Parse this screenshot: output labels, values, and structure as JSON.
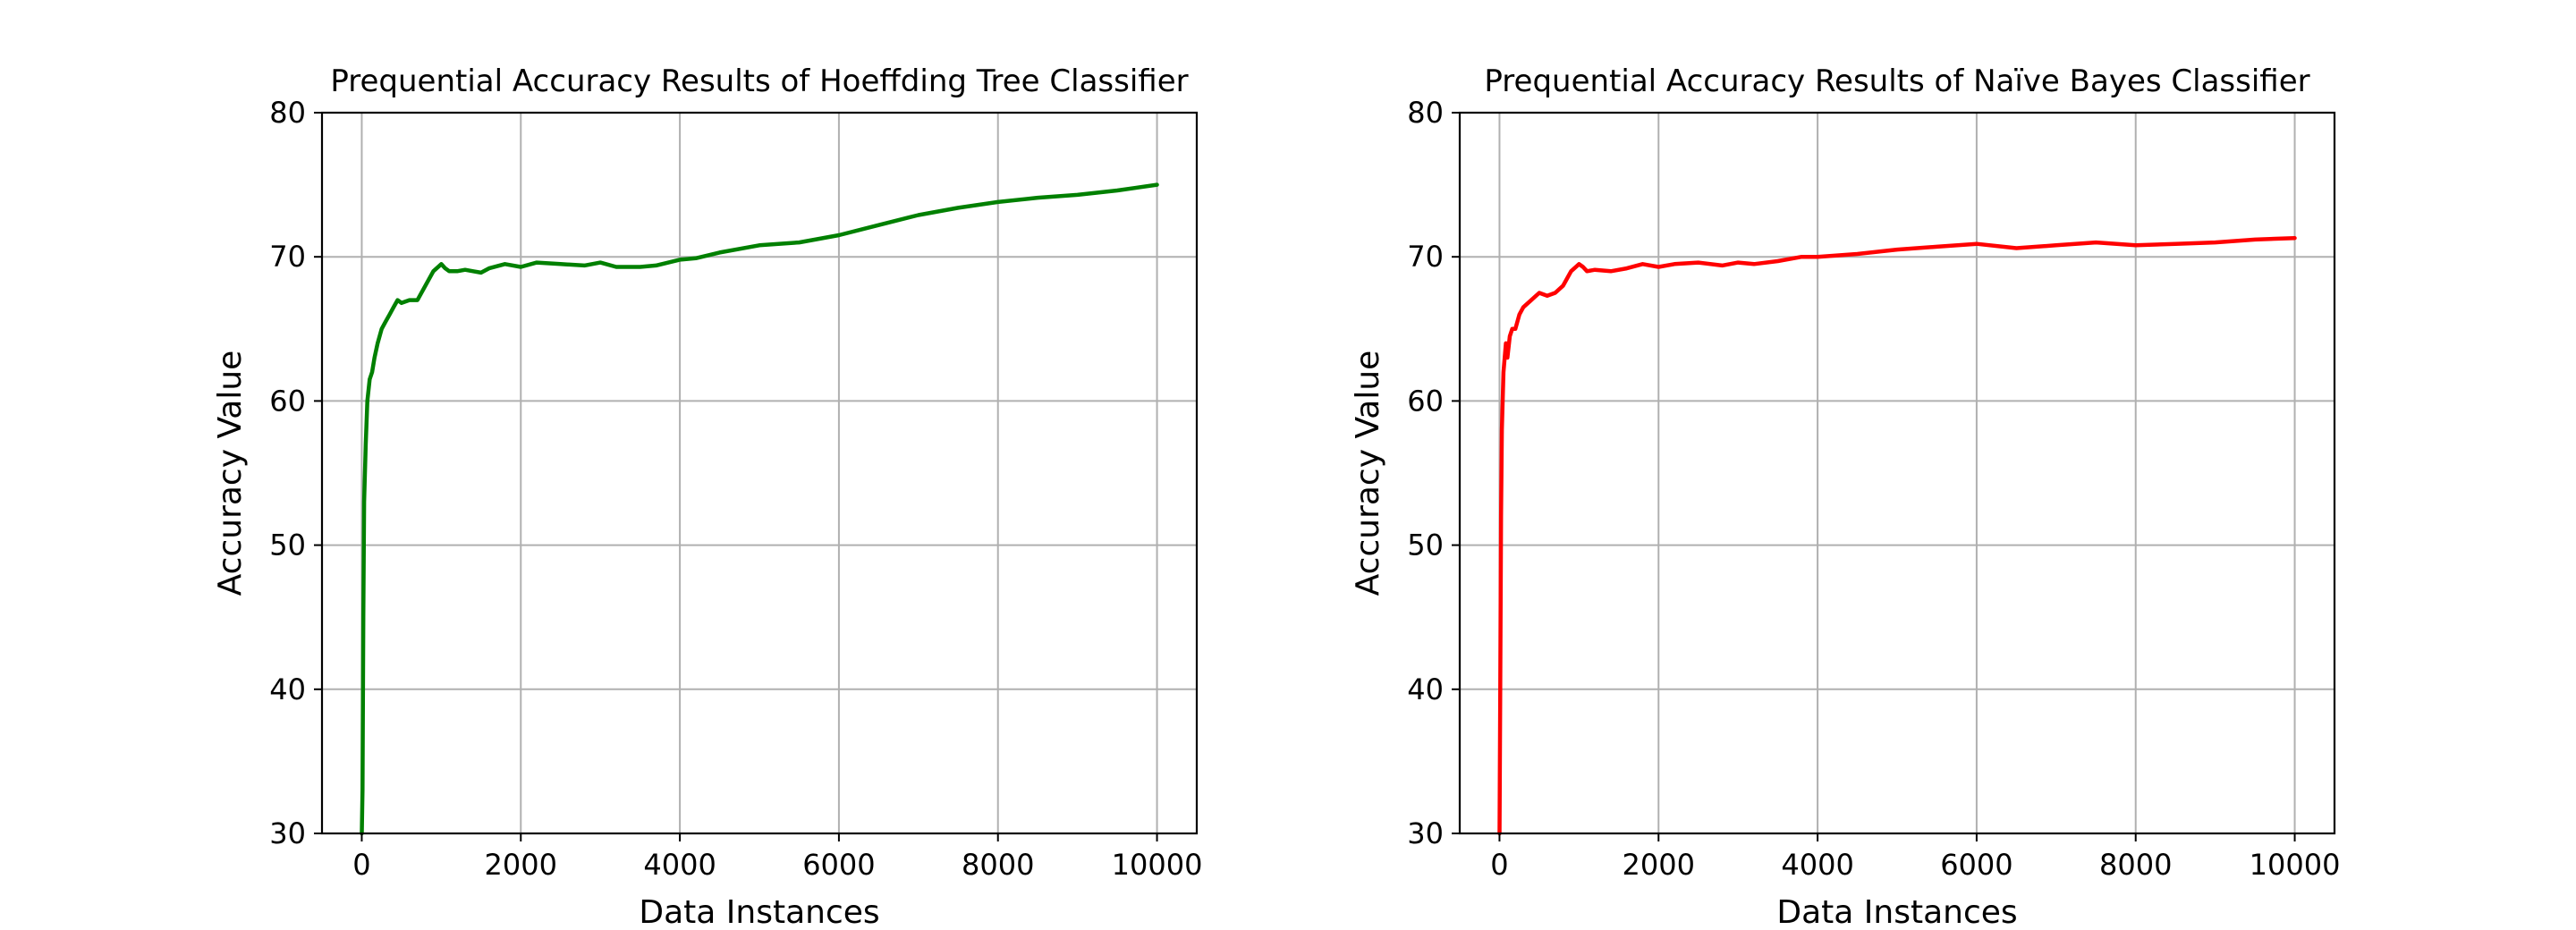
{
  "colors": {
    "background": "#ffffff",
    "grid": "#b0b0b0",
    "axis": "#000000"
  },
  "chart_data": [
    {
      "type": "line",
      "title": "Prequential Accuracy Results of Hoeffding Tree Classifier",
      "xlabel": "Data Instances",
      "ylabel": "Accuracy Value",
      "xlim": [
        -500,
        10500
      ],
      "ylim": [
        30,
        80
      ],
      "xticks": [
        0,
        2000,
        4000,
        6000,
        8000,
        10000
      ],
      "yticks": [
        30,
        40,
        50,
        60,
        70,
        80
      ],
      "grid": true,
      "series": [
        {
          "color": "#008000",
          "x": [
            0,
            10,
            20,
            30,
            50,
            70,
            100,
            130,
            160,
            200,
            250,
            300,
            350,
            400,
            450,
            500,
            600,
            700,
            800,
            900,
            1000,
            1050,
            1100,
            1200,
            1300,
            1400,
            1500,
            1600,
            1800,
            2000,
            2200,
            2500,
            2800,
            3000,
            3200,
            3500,
            3700,
            4000,
            4200,
            4500,
            5000,
            5500,
            6000,
            6500,
            7000,
            7500,
            8000,
            8500,
            9000,
            9500,
            10000
          ],
          "y": [
            30,
            33,
            45,
            53,
            57,
            60,
            61.5,
            62,
            63,
            64,
            65,
            65.5,
            66,
            66.5,
            67,
            66.8,
            67,
            67,
            68,
            69,
            69.5,
            69.2,
            69,
            69,
            69.1,
            69,
            68.9,
            69.2,
            69.5,
            69.3,
            69.6,
            69.5,
            69.4,
            69.6,
            69.3,
            69.3,
            69.4,
            69.8,
            69.9,
            70.3,
            70.8,
            71.0,
            71.5,
            72.2,
            72.9,
            73.4,
            73.8,
            74.1,
            74.3,
            74.6,
            75.0
          ]
        }
      ]
    },
    {
      "type": "line",
      "title": "Prequential Accuracy Results of Naïve Bayes Classifier",
      "xlabel": "Data Instances",
      "ylabel": "Accuracy Value",
      "xlim": [
        -500,
        10500
      ],
      "ylim": [
        30,
        80
      ],
      "xticks": [
        0,
        2000,
        4000,
        6000,
        8000,
        10000
      ],
      "yticks": [
        30,
        40,
        50,
        60,
        70,
        80
      ],
      "grid": true,
      "series": [
        {
          "color": "#ff0000",
          "x": [
            0,
            10,
            20,
            30,
            50,
            80,
            100,
            130,
            160,
            200,
            250,
            300,
            400,
            500,
            600,
            700,
            800,
            900,
            1000,
            1050,
            1100,
            1200,
            1400,
            1600,
            1800,
            2000,
            2200,
            2500,
            2800,
            3000,
            3200,
            3500,
            3800,
            4000,
            4500,
            5000,
            5500,
            6000,
            6500,
            7000,
            7500,
            8000,
            8500,
            9000,
            9500,
            10000
          ],
          "y": [
            30,
            40,
            52,
            58,
            62,
            64,
            63,
            64.5,
            65,
            65,
            66,
            66.5,
            67,
            67.5,
            67.3,
            67.5,
            68,
            69,
            69.5,
            69.3,
            69,
            69.1,
            69,
            69.2,
            69.5,
            69.3,
            69.5,
            69.6,
            69.4,
            69.6,
            69.5,
            69.7,
            70,
            70,
            70.2,
            70.5,
            70.7,
            70.9,
            70.6,
            70.8,
            71.0,
            70.8,
            70.9,
            71.0,
            71.2,
            71.3
          ]
        }
      ]
    }
  ]
}
